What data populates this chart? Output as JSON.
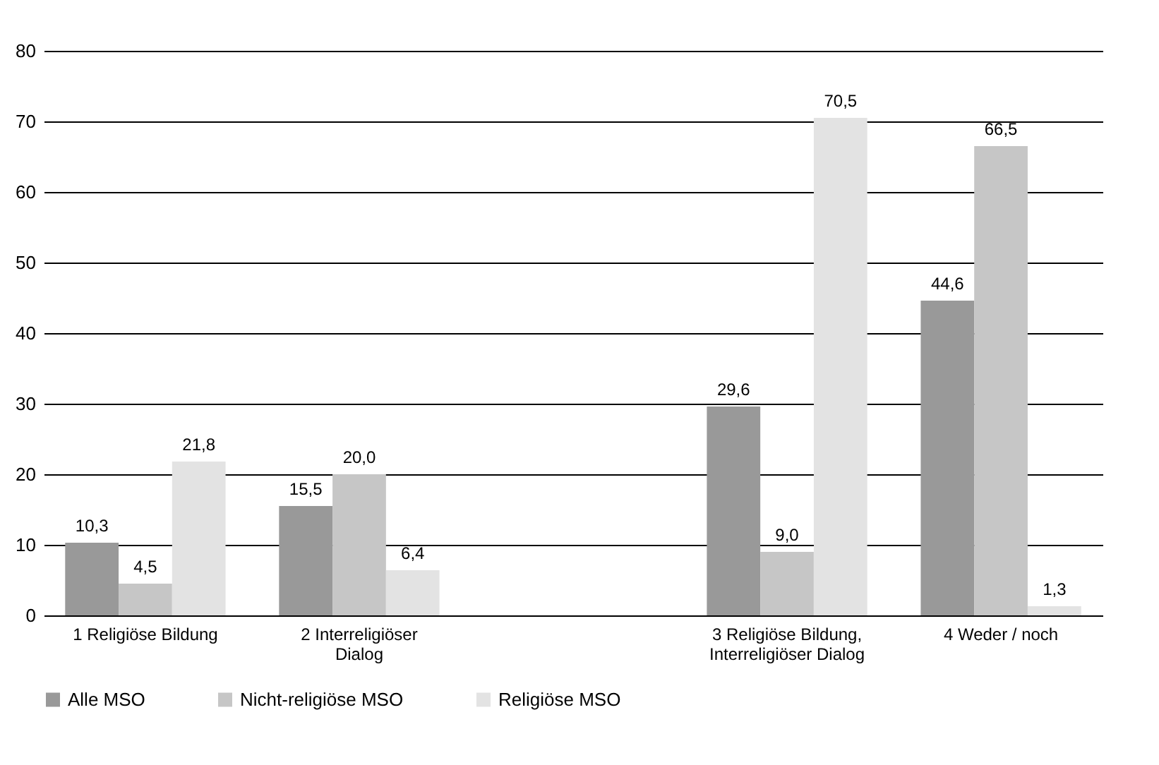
{
  "chart_data": {
    "type": "bar",
    "categories": [
      "1 Religiöse Bildung",
      "2 Interreligiöser Dialog",
      null,
      "3 Religiöse Bildung, Interreligiöser Dialog",
      "4 Weder / noch"
    ],
    "series": [
      {
        "name": "Alle MSO",
        "color": "#999999",
        "values": [
          10.3,
          15.5,
          null,
          29.6,
          44.6
        ],
        "value_labels": [
          "10,3",
          "15,5",
          null,
          "29,6",
          "44,6"
        ]
      },
      {
        "name": "Nicht-religiöse MSO",
        "color": "#c6c6c6",
        "values": [
          4.5,
          20.0,
          null,
          9.0,
          66.5
        ],
        "value_labels": [
          "4,5",
          "20,0",
          null,
          "9,0",
          "66,5"
        ]
      },
      {
        "name": "Religiöse MSO",
        "color": "#e3e3e3",
        "values": [
          21.8,
          6.4,
          null,
          70.5,
          1.3
        ],
        "value_labels": [
          "21,8",
          "6,4",
          null,
          "70,5",
          "1,3"
        ]
      }
    ],
    "ylim": [
      0,
      80
    ],
    "yticks": [
      0,
      10,
      20,
      30,
      40,
      50,
      60,
      70,
      80
    ],
    "grid": "y",
    "legend": "bottom"
  }
}
